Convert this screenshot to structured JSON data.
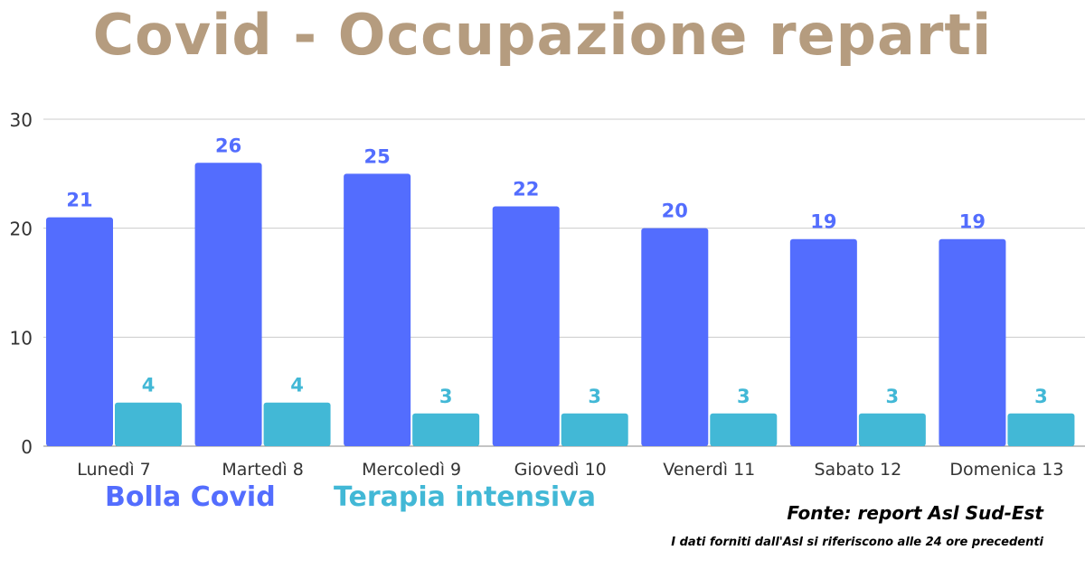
{
  "title": "Covid - Occupazione reparti",
  "legend": [
    {
      "label": "Bolla Covid",
      "color": "#536dfe"
    },
    {
      "label": "Terapia intensiva",
      "color": "#42b8d6"
    }
  ],
  "source": "Fonte: report Asl Sud-Est",
  "note": "I dati forniti dall'Asl si riferiscono alle 24 ore precedenti",
  "chart_data": {
    "type": "bar",
    "title": "Covid - Occupazione reparti",
    "categories": [
      "Lunedì 7",
      "Martedì 8",
      "Mercoledì 9",
      "Giovedì 10",
      "Venerdì 11",
      "Sabato 12",
      "Domenica 13"
    ],
    "series": [
      {
        "name": "Bolla Covid",
        "color": "#536dfe",
        "values": [
          21,
          26,
          25,
          22,
          20,
          19,
          19
        ]
      },
      {
        "name": "Terapia intensiva",
        "color": "#42b8d6",
        "values": [
          4,
          4,
          3,
          3,
          3,
          3,
          3
        ]
      }
    ],
    "ylim": [
      0,
      30
    ],
    "yticks": [
      0,
      10,
      20,
      30
    ],
    "grid": true,
    "data_labels": true,
    "xlabel": "",
    "ylabel": ""
  }
}
